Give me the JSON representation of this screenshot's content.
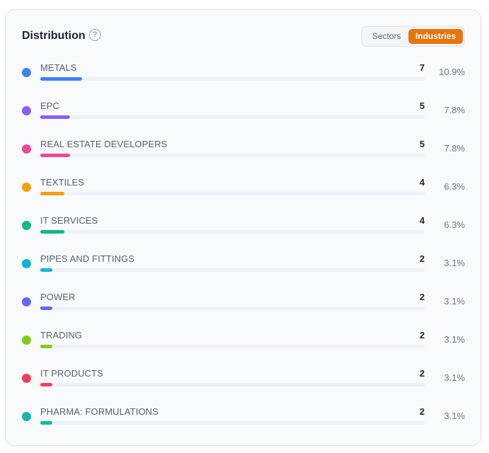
{
  "panel": {
    "title": "Distribution",
    "help_icon": "question-circle-icon",
    "help_glyph": "?",
    "toggle": {
      "options": [
        "Sectors",
        "Industries"
      ],
      "selected": "Industries",
      "accent": "#e8740c"
    }
  },
  "industries": [
    {
      "name": "METALS",
      "count": "7",
      "percent": "10.9%",
      "fraction": 0.109,
      "color": "#3b82f6"
    },
    {
      "name": "EPC",
      "count": "5",
      "percent": "7.8%",
      "fraction": 0.078,
      "color": "#8b5cf6"
    },
    {
      "name": "REAL ESTATE DEVELOPERS",
      "count": "5",
      "percent": "7.8%",
      "fraction": 0.078,
      "color": "#ec4899"
    },
    {
      "name": "TEXTILES",
      "count": "4",
      "percent": "6.3%",
      "fraction": 0.063,
      "color": "#f59e0b"
    },
    {
      "name": "IT SERVICES",
      "count": "4",
      "percent": "6.3%",
      "fraction": 0.063,
      "color": "#10b981"
    },
    {
      "name": "PIPES AND FITTINGS",
      "count": "2",
      "percent": "3.1%",
      "fraction": 0.031,
      "color": "#06b6d4"
    },
    {
      "name": "POWER",
      "count": "2",
      "percent": "3.1%",
      "fraction": 0.031,
      "color": "#6366f1"
    },
    {
      "name": "TRADING",
      "count": "2",
      "percent": "3.1%",
      "fraction": 0.031,
      "color": "#84cc16"
    },
    {
      "name": "IT PRODUCTS",
      "count": "2",
      "percent": "3.1%",
      "fraction": 0.031,
      "color": "#f43f5e"
    },
    {
      "name": "PHARMA: FORMULATIONS",
      "count": "2",
      "percent": "3.1%",
      "fraction": 0.031,
      "color": "#14b8a6"
    }
  ]
}
